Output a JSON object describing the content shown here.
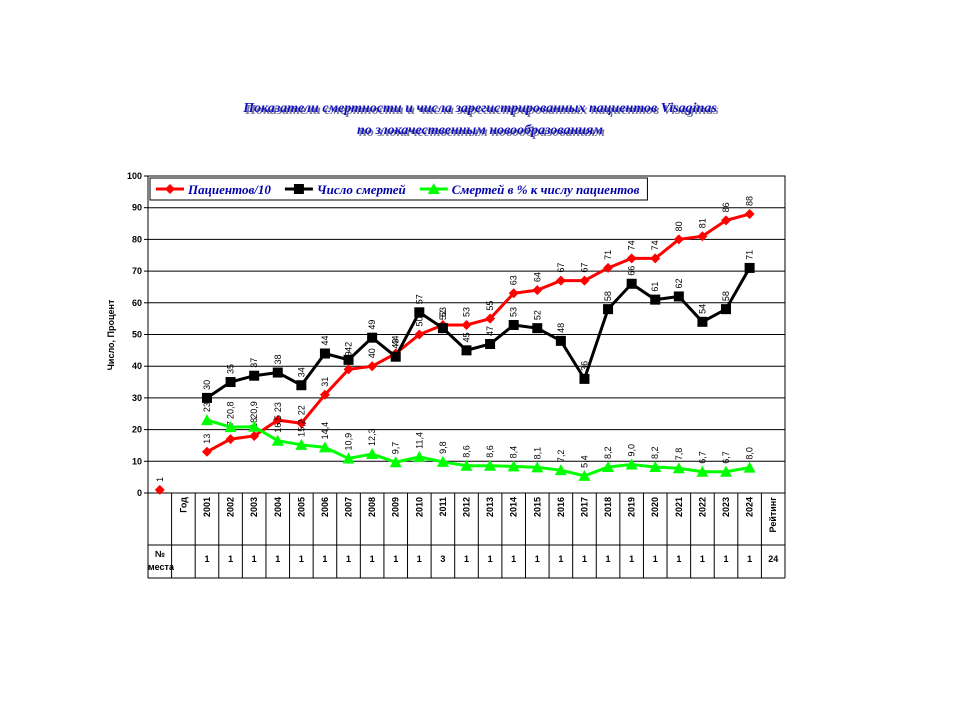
{
  "chart_data": {
    "type": "line",
    "title": [
      "Показатели смертности и числа зарегистрированных пациентов Visaginas",
      "по злокачественным новообразованиям"
    ],
    "y_label": "Число, Процент",
    "categories": [
      null,
      "Год",
      "2001",
      "2002",
      "2003",
      "2004",
      "2005",
      "2006",
      "2007",
      "2008",
      "2009",
      "2010",
      "2011",
      "2012",
      "2013",
      "2014",
      "2015",
      "2016",
      "2017",
      "2018",
      "2019",
      "2020",
      "2021",
      "2022",
      "2023",
      "2024",
      "Рейтинг"
    ],
    "series": [
      {
        "name": "Пациентов/10",
        "color": "#ff0000",
        "marker": "diamond",
        "values": [
          1,
          null,
          13,
          17,
          18,
          23,
          22,
          31,
          39,
          40,
          44,
          50,
          53,
          53,
          55,
          63,
          64,
          67,
          67,
          71,
          74,
          74,
          80,
          81,
          86,
          88,
          null
        ]
      },
      {
        "name": "Число смертей",
        "color": "#000000",
        "marker": "square",
        "values": [
          null,
          null,
          30,
          35,
          37,
          38,
          34,
          44,
          42,
          49,
          43,
          57,
          52,
          45,
          47,
          53,
          52,
          48,
          36,
          58,
          66,
          61,
          62,
          54,
          58,
          71,
          null
        ]
      },
      {
        "name": "Смертей в %  к  числу пациентов",
        "color": "#00ff00",
        "marker": "triangle",
        "values": [
          null,
          null,
          23,
          20.8,
          20.9,
          16.5,
          15.2,
          14.4,
          10.9,
          12.3,
          9.7,
          11.4,
          9.8,
          8.6,
          8.6,
          8.4,
          8.1,
          7.2,
          5.4,
          8.2,
          9.0,
          8.2,
          7.8,
          6.7,
          6.7,
          8.0,
          null
        ],
        "value_labels": [
          null,
          null,
          "23",
          "20,8",
          "20,9",
          "16,5",
          "15,2",
          "14,4",
          "10,9",
          "12,3",
          "9,7",
          "11,4",
          "9,8",
          "8,6",
          "8,6",
          "8,4",
          "8,1",
          "7,2",
          "5,4",
          "8,2",
          "9,0",
          "8,2",
          "7,8",
          "6,7",
          "6,7",
          "8,0",
          null
        ]
      }
    ],
    "ylim": [
      0,
      100
    ],
    "yticks": [
      0,
      10,
      20,
      30,
      40,
      50,
      60,
      70,
      80,
      90,
      100
    ],
    "grid": true,
    "legend": "top-left",
    "rank_label": "№ места",
    "ranks": [
      null,
      null,
      1,
      1,
      1,
      1,
      1,
      1,
      1,
      1,
      1,
      1,
      3,
      1,
      1,
      1,
      1,
      1,
      1,
      1,
      1,
      1,
      1,
      1,
      1,
      1,
      24
    ]
  }
}
